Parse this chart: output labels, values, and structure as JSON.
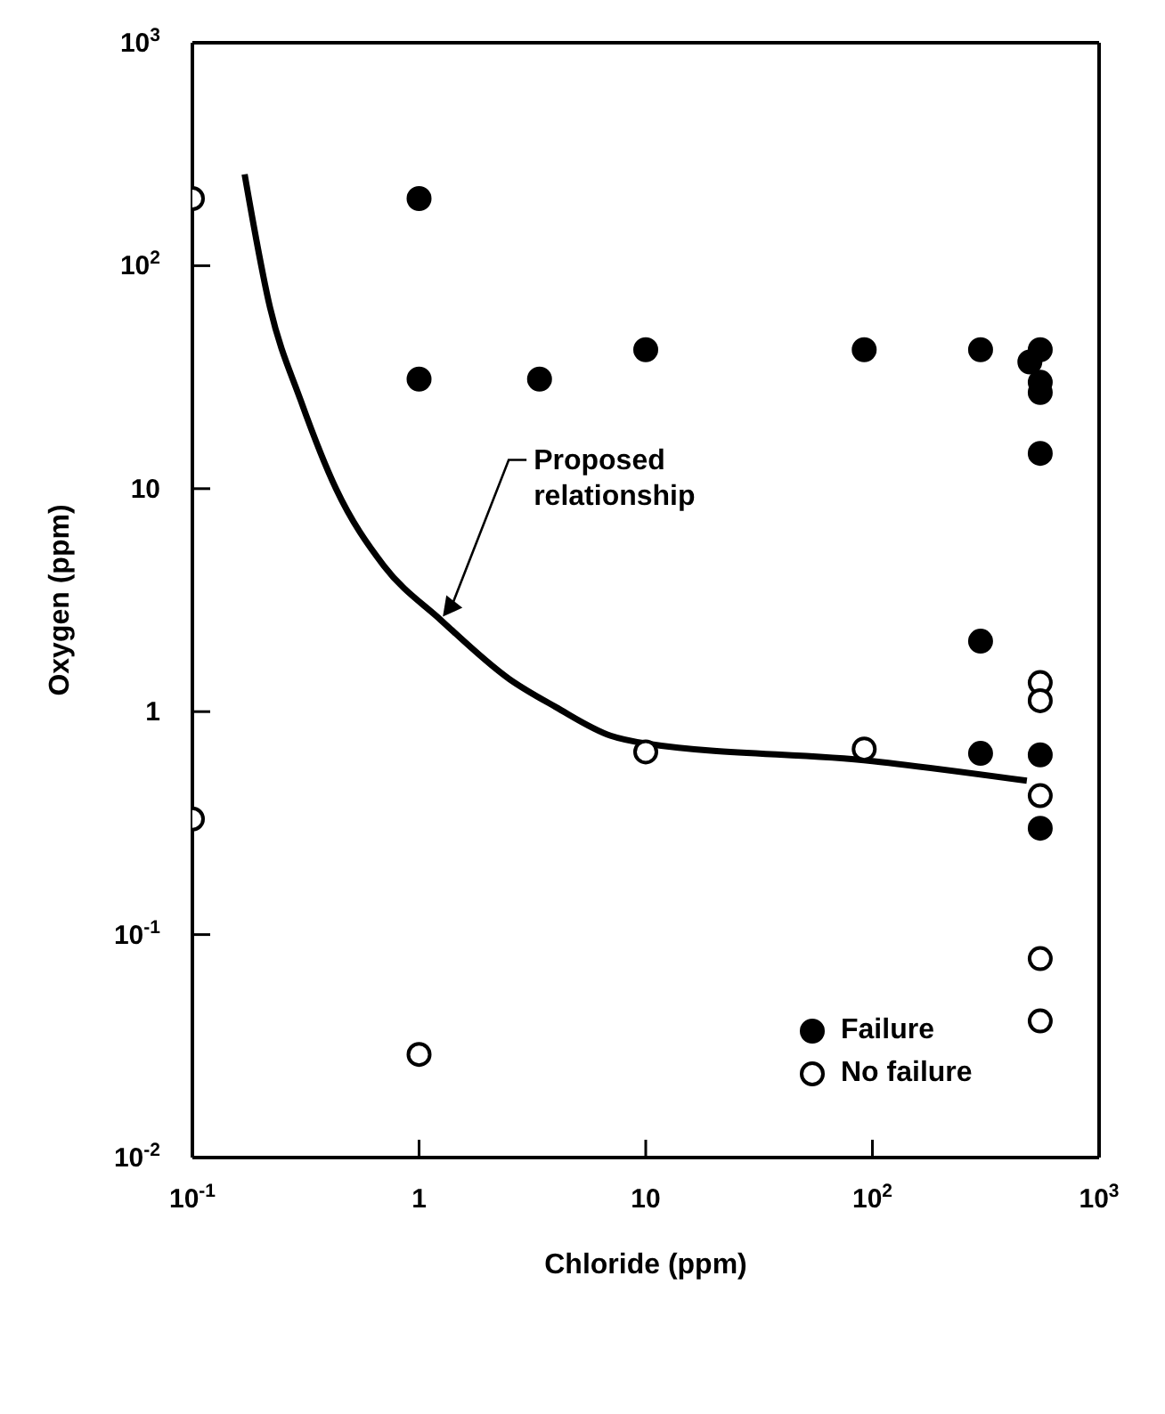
{
  "chart_data": {
    "type": "scatter",
    "xlabel": "Chloride (ppm)",
    "ylabel": "Oxygen (ppm)",
    "log": "xy",
    "marker": "circle",
    "legend": "bottom right",
    "xlim": [
      0.1,
      1000
    ],
    "ylim": [
      0.01,
      1000
    ],
    "xticks": [
      {
        "value": 0.1,
        "label": "10$^{-1}$"
      },
      1,
      10,
      {
        "value": 100,
        "label": "10$^{2}$"
      },
      {
        "value": 1000,
        "label": "10$^{3}$"
      }
    ],
    "yticks": [
      {
        "value": 0.01,
        "label": "10$^{-2}$"
      },
      {
        "value": 0.1,
        "label": "10$^{-1}$"
      },
      1,
      10,
      {
        "value": 100,
        "label": "10$^{2}$"
      },
      {
        "value": 1000,
        "label": "10$^{3}$"
      }
    ],
    "series": [
      {
        "name": "Failure",
        "color": "#000000",
        "x": [
          1,
          1,
          3.4,
          10,
          92,
          300,
          495,
          550,
          550,
          550,
          550,
          300,
          300,
          550,
          550
        ],
        "values": [
          200,
          31,
          31,
          42,
          42,
          42,
          37,
          42,
          30,
          27,
          14.4,
          2.07,
          0.65,
          0.64,
          0.3
        ]
      },
      {
        "name": "No failure",
        "color": "#ffffff",
        "x": [
          0.1,
          0.1,
          1,
          10,
          92,
          550,
          550,
          550,
          550,
          550
        ],
        "values": [
          200,
          0.33,
          0.029,
          0.66,
          0.68,
          1.35,
          1.12,
          0.42,
          0.078,
          0.041
        ]
      },
      {
        "type": "line",
        "color": "#000000",
        "marker": "none",
        "x": [
          0.17,
          0.22,
          0.3,
          0.43,
          0.7,
          1.25,
          2.5,
          4,
          7,
          10,
          100,
          480
        ],
        "values": [
          257,
          65,
          25,
          10,
          4.5,
          2.57,
          1.4,
          1.05,
          0.78,
          0.72,
          0.6,
          0.49
        ]
      }
    ],
    "annotations": [
      "Proposed relationship"
    ]
  }
}
